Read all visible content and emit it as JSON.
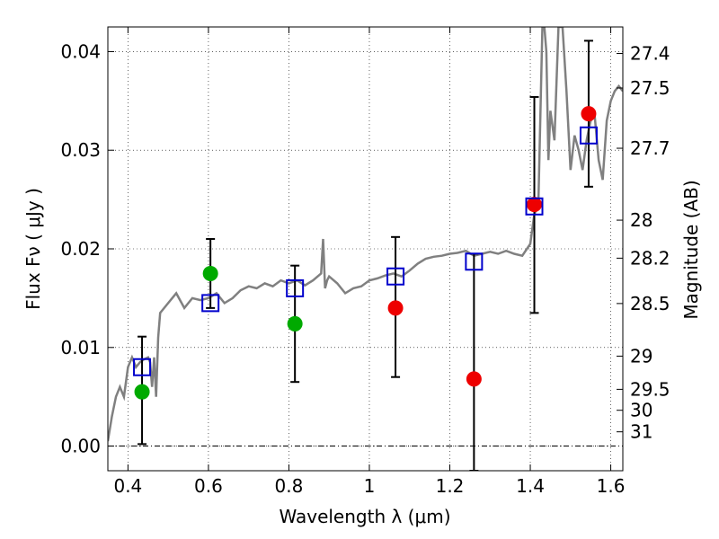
{
  "chart_data": {
    "type": "scatter",
    "xlabel": "Wavelength  λ (μm)",
    "ylabel": "Flux  Fν  ( μJy )",
    "ylabel2": "Magnitude (AB)",
    "xlim": [
      0.35,
      1.63
    ],
    "ylim": [
      -0.0025,
      0.0425
    ],
    "xticks": [
      "0.4",
      "0.6",
      "0.8",
      "1",
      "1.2",
      "1.4",
      "1.6"
    ],
    "yticks": [
      "0.00",
      "0.01",
      "0.02",
      "0.03",
      "0.04"
    ],
    "magnitude_ticks": [
      "27.4",
      "27.5",
      "27.7",
      "28",
      "28.2",
      "28.5",
      "29",
      "29.5",
      "30",
      "31"
    ],
    "grid": true,
    "legend": false,
    "colors": {
      "model": "#808080",
      "model_photometry": "#0000cc",
      "green_points": "#00aa00",
      "red_points": "#ee0000",
      "errorbars": "#000000",
      "zero_line": "#000000"
    },
    "series": [
      {
        "type": "line",
        "color": "#808080",
        "x": [
          0.35,
          0.36,
          0.37,
          0.38,
          0.39,
          0.4,
          0.41,
          0.42,
          0.43,
          0.44,
          0.45,
          0.455,
          0.46,
          0.465,
          0.47,
          0.475,
          0.48,
          0.5,
          0.52,
          0.54,
          0.56,
          0.58,
          0.6,
          0.62,
          0.64,
          0.66,
          0.68,
          0.7,
          0.72,
          0.74,
          0.76,
          0.78,
          0.8,
          0.82,
          0.84,
          0.86,
          0.88,
          0.885,
          0.89,
          0.895,
          0.9,
          0.92,
          0.94,
          0.96,
          0.98,
          1.0,
          1.02,
          1.04,
          1.06,
          1.08,
          1.1,
          1.12,
          1.14,
          1.16,
          1.18,
          1.2,
          1.22,
          1.24,
          1.26,
          1.28,
          1.3,
          1.32,
          1.34,
          1.36,
          1.38,
          1.4,
          1.41,
          1.42,
          1.43,
          1.435,
          1.44,
          1.445,
          1.45,
          1.46,
          1.47,
          1.48,
          1.49,
          1.5,
          1.51,
          1.52,
          1.53,
          1.54,
          1.55,
          1.56,
          1.57,
          1.58,
          1.59,
          1.6,
          1.61,
          1.62,
          1.63
        ],
        "y": [
          0.0005,
          0.003,
          0.005,
          0.006,
          0.005,
          0.008,
          0.009,
          0.008,
          0.0085,
          0.0088,
          0.009,
          0.0085,
          0.006,
          0.009,
          0.005,
          0.011,
          0.0135,
          0.0145,
          0.0155,
          0.014,
          0.015,
          0.0148,
          0.015,
          0.0155,
          0.0145,
          0.015,
          0.0158,
          0.0162,
          0.016,
          0.0165,
          0.0162,
          0.0168,
          0.0165,
          0.0168,
          0.0163,
          0.0168,
          0.0175,
          0.021,
          0.016,
          0.0168,
          0.0172,
          0.0165,
          0.0155,
          0.016,
          0.0162,
          0.0168,
          0.017,
          0.0173,
          0.0175,
          0.0172,
          0.0178,
          0.0185,
          0.019,
          0.0192,
          0.0193,
          0.0195,
          0.0196,
          0.0198,
          0.0193,
          0.0195,
          0.0197,
          0.0195,
          0.0198,
          0.0195,
          0.0193,
          0.0205,
          0.0235,
          0.0245,
          0.0425,
          0.0425,
          0.04,
          0.029,
          0.034,
          0.031,
          0.0425,
          0.0425,
          0.036,
          0.028,
          0.0315,
          0.03,
          0.028,
          0.031,
          0.033,
          0.0335,
          0.029,
          0.027,
          0.033,
          0.035,
          0.036,
          0.0365,
          0.036
        ]
      },
      {
        "type": "scatter",
        "marker": "open-square",
        "color": "#0000cc",
        "x": [
          0.435,
          0.605,
          0.815,
          1.065,
          1.26,
          1.41,
          1.545
        ],
        "y": [
          0.008,
          0.0145,
          0.016,
          0.0172,
          0.0187,
          0.0243,
          0.0315
        ]
      },
      {
        "type": "scatter",
        "marker": "circle",
        "color": "#00aa00",
        "x": [
          0.435,
          0.605,
          0.815
        ],
        "y": [
          0.0055,
          0.0175,
          0.0124
        ]
      },
      {
        "type": "scatter",
        "marker": "circle",
        "color": "#ee0000",
        "x": [
          1.065,
          1.26,
          1.41,
          1.545
        ],
        "y": [
          0.014,
          0.0068,
          0.0245,
          0.0337
        ]
      },
      {
        "type": "errorbar",
        "color": "#000000",
        "x": [
          0.435,
          0.605,
          0.815,
          1.065,
          1.26,
          1.41,
          1.545
        ],
        "ylow": [
          0.0002,
          0.014,
          0.0065,
          0.007,
          -0.0025,
          0.0135,
          0.0263
        ],
        "yhigh": [
          0.0111,
          0.021,
          0.0183,
          0.0212,
          0.0195,
          0.0354,
          0.0411
        ]
      }
    ]
  }
}
